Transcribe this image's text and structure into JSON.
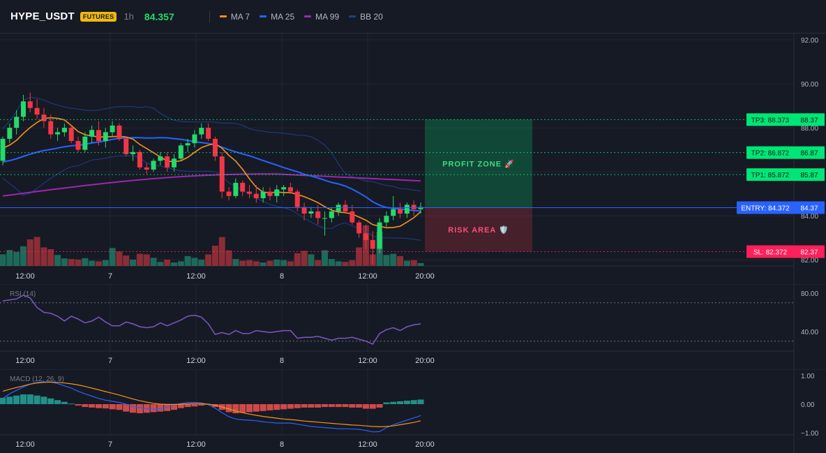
{
  "header": {
    "symbol": "HYPE_USDT",
    "badge": "FUTURES",
    "timeframe": "1h",
    "last_price": "84.357",
    "indicators": [
      {
        "label": "MA 7",
        "color": "#f7931a"
      },
      {
        "label": "MA 25",
        "color": "#2962ff"
      },
      {
        "label": "MA 99",
        "color": "#9c27b0"
      },
      {
        "label": "BB 20",
        "color": "#1e3f8a"
      }
    ]
  },
  "colors": {
    "up": "#26d96a",
    "down": "#f23645",
    "up_volume": "#1e6a5a",
    "down_volume": "#8b2d37",
    "ma7": "#f7931a",
    "ma25": "#2962ff",
    "ma99": "#9c27b0",
    "bb": "#1e3f8a",
    "rsi": "#7e57c2",
    "macd_line": "#2962ff",
    "signal_line": "#f7931a",
    "tp": "#00e676",
    "entry": "#2962ff",
    "sl": "#ff1f5a"
  },
  "main_axis": {
    "ticks": [
      "92.00",
      "90.00",
      "88.00",
      "86.00",
      "84.00",
      "82.00"
    ]
  },
  "time_axis": [
    "12:00",
    "7",
    "12:00",
    "8",
    "12:00",
    "20:00"
  ],
  "levels": [
    {
      "key": "tp3",
      "tag": "TP3: 88.373",
      "price_label": "88.37",
      "value": 88.373,
      "kind": "tp"
    },
    {
      "key": "tp2",
      "tag": "TP2: 86.872",
      "price_label": "86.87",
      "value": 86.872,
      "kind": "tp"
    },
    {
      "key": "tp1",
      "tag": "TP1: 85.872",
      "price_label": "85.87",
      "value": 85.872,
      "kind": "tp"
    },
    {
      "key": "entry",
      "tag": "ENTRY: 84.372",
      "price_label": "84.37",
      "value": 84.372,
      "kind": "entry"
    },
    {
      "key": "sl",
      "tag": "SL: 82.372",
      "price_label": "82.37",
      "value": 82.372,
      "kind": "sl"
    }
  ],
  "zones": {
    "profit": "PROFIT ZONE 🚀",
    "risk": "RISK AREA 🛡️"
  },
  "rsi": {
    "title": "RSI (14)",
    "ticks": [
      "80.00",
      "40.00"
    ],
    "upper": 70,
    "lower": 30
  },
  "macd": {
    "title": "MACD (12, 26, 9)",
    "ticks": [
      "1.00",
      "0.00",
      "−1.00"
    ]
  },
  "chart_data": [
    {
      "type": "candlestick",
      "title": "HYPE_USDT",
      "ylim": [
        81.5,
        92.0
      ],
      "series": [
        {
          "name": "MA 7"
        },
        {
          "name": "MA 25"
        },
        {
          "name": "MA 99"
        },
        {
          "name": "BB 20"
        }
      ],
      "candles": [
        [
          86.5,
          87.6,
          86.3,
          87.5
        ],
        [
          87.5,
          88.2,
          87.3,
          88.0
        ],
        [
          88.0,
          88.8,
          87.7,
          88.5
        ],
        [
          88.5,
          89.5,
          88.3,
          89.2
        ],
        [
          89.2,
          89.6,
          88.7,
          88.9
        ],
        [
          88.9,
          89.3,
          88.4,
          88.6
        ],
        [
          88.6,
          88.9,
          88.0,
          88.3
        ],
        [
          88.3,
          88.6,
          87.5,
          87.7
        ],
        [
          87.7,
          88.0,
          87.4,
          87.8
        ],
        [
          87.8,
          88.2,
          87.6,
          88.0
        ],
        [
          88.0,
          88.1,
          87.3,
          87.4
        ],
        [
          87.4,
          87.6,
          86.9,
          87.0
        ],
        [
          87.0,
          87.8,
          86.9,
          87.6
        ],
        [
          87.6,
          88.1,
          87.3,
          87.9
        ],
        [
          87.9,
          88.3,
          87.2,
          87.4
        ],
        [
          87.4,
          88.0,
          87.1,
          87.8
        ],
        [
          87.8,
          88.3,
          87.6,
          88.1
        ],
        [
          88.1,
          88.2,
          87.4,
          87.5
        ],
        [
          87.5,
          87.6,
          86.7,
          86.8
        ],
        [
          86.8,
          87.2,
          86.5,
          86.9
        ],
        [
          86.9,
          87.0,
          86.1,
          86.2
        ],
        [
          86.2,
          86.4,
          85.9,
          86.1
        ],
        [
          86.1,
          86.6,
          86.0,
          86.5
        ],
        [
          86.5,
          86.9,
          86.3,
          86.7
        ],
        [
          86.7,
          86.9,
          86.0,
          86.2
        ],
        [
          86.2,
          86.8,
          86.0,
          86.6
        ],
        [
          86.6,
          87.3,
          86.5,
          87.2
        ],
        [
          87.2,
          87.5,
          86.9,
          87.3
        ],
        [
          87.3,
          87.9,
          87.1,
          87.7
        ],
        [
          87.7,
          88.2,
          87.5,
          88.0
        ],
        [
          88.0,
          88.2,
          87.4,
          87.5
        ],
        [
          87.5,
          87.6,
          86.5,
          86.7
        ],
        [
          86.7,
          86.9,
          84.8,
          85.1
        ],
        [
          85.1,
          85.3,
          84.7,
          84.9
        ],
        [
          84.9,
          85.7,
          84.8,
          85.5
        ],
        [
          85.5,
          85.6,
          84.9,
          85.1
        ],
        [
          85.1,
          85.4,
          84.8,
          85.0
        ],
        [
          85.0,
          85.4,
          84.6,
          84.8
        ],
        [
          84.8,
          85.3,
          84.6,
          85.1
        ],
        [
          85.1,
          85.3,
          84.7,
          84.9
        ],
        [
          84.9,
          85.4,
          84.6,
          85.2
        ],
        [
          85.2,
          85.4,
          84.9,
          85.3
        ],
        [
          85.3,
          85.5,
          85.0,
          85.1
        ],
        [
          85.1,
          85.2,
          84.2,
          84.4
        ],
        [
          84.4,
          84.6,
          83.8,
          84.1
        ],
        [
          84.1,
          84.4,
          83.9,
          84.2
        ],
        [
          84.2,
          84.5,
          83.6,
          83.9
        ],
        [
          83.9,
          84.2,
          83.1,
          83.9
        ],
        [
          83.9,
          84.4,
          83.7,
          84.2
        ],
        [
          84.2,
          84.6,
          84.0,
          84.5
        ],
        [
          84.5,
          84.7,
          84.1,
          84.2
        ],
        [
          84.2,
          84.5,
          83.6,
          83.7
        ],
        [
          83.7,
          83.8,
          83.0,
          83.2
        ],
        [
          83.2,
          83.6,
          82.5,
          82.9
        ],
        [
          82.9,
          83.3,
          81.8,
          82.5
        ],
        [
          82.5,
          83.9,
          82.3,
          83.7
        ],
        [
          83.7,
          84.2,
          83.5,
          84.0
        ],
        [
          84.0,
          84.9,
          83.8,
          84.3
        ],
        [
          84.3,
          84.6,
          83.9,
          84.1
        ],
        [
          84.1,
          84.6,
          83.9,
          84.5
        ],
        [
          84.5,
          84.7,
          84.0,
          84.3
        ],
        [
          84.3,
          84.6,
          84.1,
          84.4
        ]
      ],
      "volume": [
        40,
        55,
        48,
        68,
        92,
        100,
        64,
        58,
        38,
        26,
        24,
        22,
        27,
        18,
        16,
        20,
        62,
        50,
        36,
        22,
        42,
        40,
        28,
        14,
        22,
        12,
        16,
        34,
        28,
        22,
        40,
        70,
        100,
        54,
        24,
        18,
        20,
        16,
        12,
        18,
        22,
        20,
        16,
        44,
        52,
        40,
        20,
        54,
        24,
        16,
        14,
        20,
        64,
        140,
        40,
        118,
        38,
        42,
        34,
        18,
        20,
        10
      ]
    },
    {
      "type": "line",
      "title": "RSI (14)",
      "ylim": [
        20,
        85
      ],
      "y": [
        72,
        73,
        74,
        78,
        75,
        65,
        60,
        59,
        56,
        51,
        56,
        53,
        49,
        51,
        55,
        50,
        46,
        46,
        50,
        48,
        45,
        44,
        45,
        49,
        46,
        49,
        52,
        56,
        57,
        55,
        48,
        37,
        39,
        37,
        41,
        38,
        38,
        41,
        40,
        39,
        40,
        41,
        41,
        33,
        34,
        34,
        35,
        33,
        31,
        33,
        33,
        34,
        32,
        30,
        27,
        38,
        42,
        44,
        41,
        45,
        47,
        48
      ]
    },
    {
      "type": "bar",
      "title": "MACD (12, 26, 9)",
      "ylim": [
        -1.1,
        1.1
      ],
      "histogram": [
        0.22,
        0.26,
        0.3,
        0.34,
        0.34,
        0.3,
        0.26,
        0.2,
        0.14,
        0.08,
        0.02,
        -0.05,
        -0.1,
        -0.12,
        -0.14,
        -0.15,
        -0.18,
        -0.2,
        -0.26,
        -0.3,
        -0.32,
        -0.3,
        -0.28,
        -0.26,
        -0.24,
        -0.2,
        -0.14,
        -0.1,
        -0.08,
        -0.05,
        -0.02,
        -0.1,
        -0.2,
        -0.28,
        -0.32,
        -0.3,
        -0.28,
        -0.26,
        -0.24,
        -0.22,
        -0.2,
        -0.18,
        -0.16,
        -0.14,
        -0.12,
        -0.12,
        -0.12,
        -0.1,
        -0.1,
        -0.1,
        -0.1,
        -0.12,
        -0.12,
        -0.16,
        -0.16,
        -0.12,
        0.06,
        0.08,
        0.1,
        0.12,
        0.14,
        0.16
      ],
      "macd": [
        0.2,
        0.36,
        0.48,
        0.6,
        0.7,
        0.76,
        0.78,
        0.77,
        0.72,
        0.64,
        0.56,
        0.45,
        0.36,
        0.28,
        0.2,
        0.14,
        0.1,
        0.06,
        0.0,
        -0.08,
        -0.12,
        -0.16,
        -0.18,
        -0.16,
        -0.1,
        -0.03,
        0.02,
        0.06,
        0.06,
        0.04,
        -0.02,
        -0.14,
        -0.3,
        -0.44,
        -0.52,
        -0.55,
        -0.56,
        -0.58,
        -0.62,
        -0.64,
        -0.66,
        -0.66,
        -0.66,
        -0.7,
        -0.74,
        -0.78,
        -0.8,
        -0.82,
        -0.84,
        -0.86,
        -0.86,
        -0.87,
        -0.88,
        -0.92,
        -0.97,
        -0.96,
        -0.82,
        -0.72,
        -0.64,
        -0.56,
        -0.48,
        -0.4
      ],
      "signal": [
        0.45,
        0.52,
        0.58,
        0.64,
        0.7,
        0.74,
        0.76,
        0.77,
        0.76,
        0.74,
        0.71,
        0.67,
        0.62,
        0.56,
        0.5,
        0.44,
        0.38,
        0.32,
        0.25,
        0.18,
        0.12,
        0.07,
        0.03,
        0.0,
        -0.01,
        -0.01,
        0.0,
        0.01,
        0.02,
        0.02,
        0.0,
        -0.04,
        -0.1,
        -0.17,
        -0.24,
        -0.3,
        -0.35,
        -0.39,
        -0.43,
        -0.46,
        -0.49,
        -0.52,
        -0.54,
        -0.56,
        -0.59,
        -0.61,
        -0.63,
        -0.65,
        -0.67,
        -0.69,
        -0.71,
        -0.73,
        -0.74,
        -0.76,
        -0.78,
        -0.79,
        -0.78,
        -0.76,
        -0.72,
        -0.68,
        -0.64,
        -0.58
      ]
    }
  ]
}
